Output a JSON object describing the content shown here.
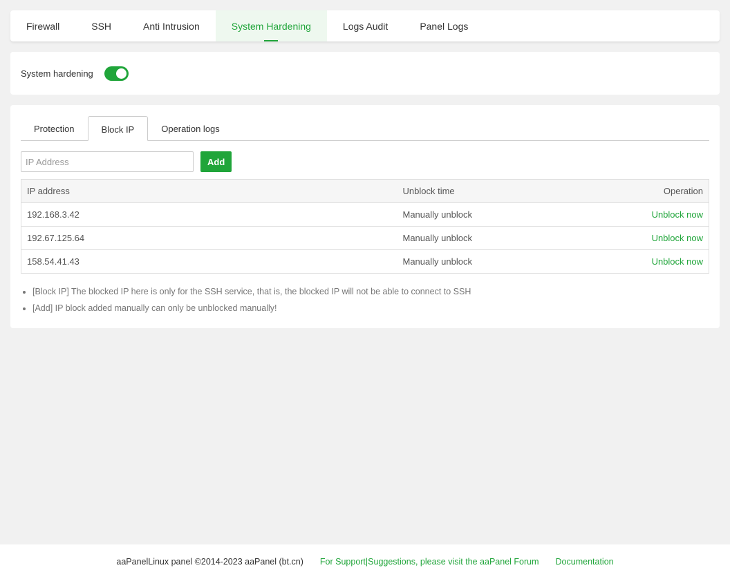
{
  "nav": {
    "tabs": [
      "Firewall",
      "SSH",
      "Anti Intrusion",
      "System Hardening",
      "Logs Audit",
      "Panel Logs"
    ],
    "active": 3
  },
  "hardening": {
    "label": "System hardening",
    "enabled": true
  },
  "subtabs": [
    "Protection",
    "Block IP",
    "Operation logs"
  ],
  "input": {
    "placeholder": "IP Address",
    "value": ""
  },
  "add_label": "Add",
  "table": {
    "headers": [
      "IP address",
      "Unblock time",
      "Operation"
    ],
    "rows": [
      [
        "192.168.3.42",
        "Manually unblock",
        "Unblock now"
      ],
      [
        "192.67.125.64",
        "Manually unblock",
        "Unblock now"
      ],
      [
        "158.54.41.43",
        "Manually unblock",
        "Unblock now"
      ]
    ]
  },
  "notes": [
    "[Block IP] The blocked IP here is only for the SSH service, that is, the blocked IP will not be able to connect to SSH",
    "[Add] IP block added manually can only be unblocked manually!"
  ],
  "footer": {
    "copyright": "aaPanelLinux panel ©2014-2023 aaPanel (bt.cn)",
    "support": "For Support|Suggestions, please visit the aaPanel Forum",
    "docs": "Documentation"
  },
  "colors": {
    "accent": "#20a53a"
  }
}
